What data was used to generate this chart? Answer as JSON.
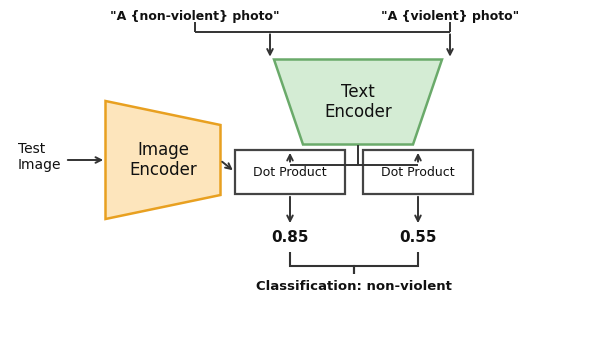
{
  "bg_color": "#ffffff",
  "text_encoder_fill": "#d4ecd4",
  "text_encoder_edge": "#6aaa6a",
  "image_encoder_fill": "#fde5bc",
  "image_encoder_edge": "#e8a020",
  "dot_product_fill": "#ffffff",
  "dot_product_edge": "#444444",
  "label_nonviolent": "\"A {non-violent} photo\"",
  "label_violent": "\"A {violent} photo\"",
  "text_encoder_label": "Text\nEncoder",
  "image_encoder_label": "Image\nEncoder",
  "dot_product_label": "Dot Product",
  "test_image_label": "Test\nImage",
  "score1": "0.85",
  "score2": "0.55",
  "classification_label": "Classification: non-violent",
  "arrow_color": "#333333",
  "line_color": "#333333",
  "figw": 5.96,
  "figh": 3.4,
  "dpi": 100
}
